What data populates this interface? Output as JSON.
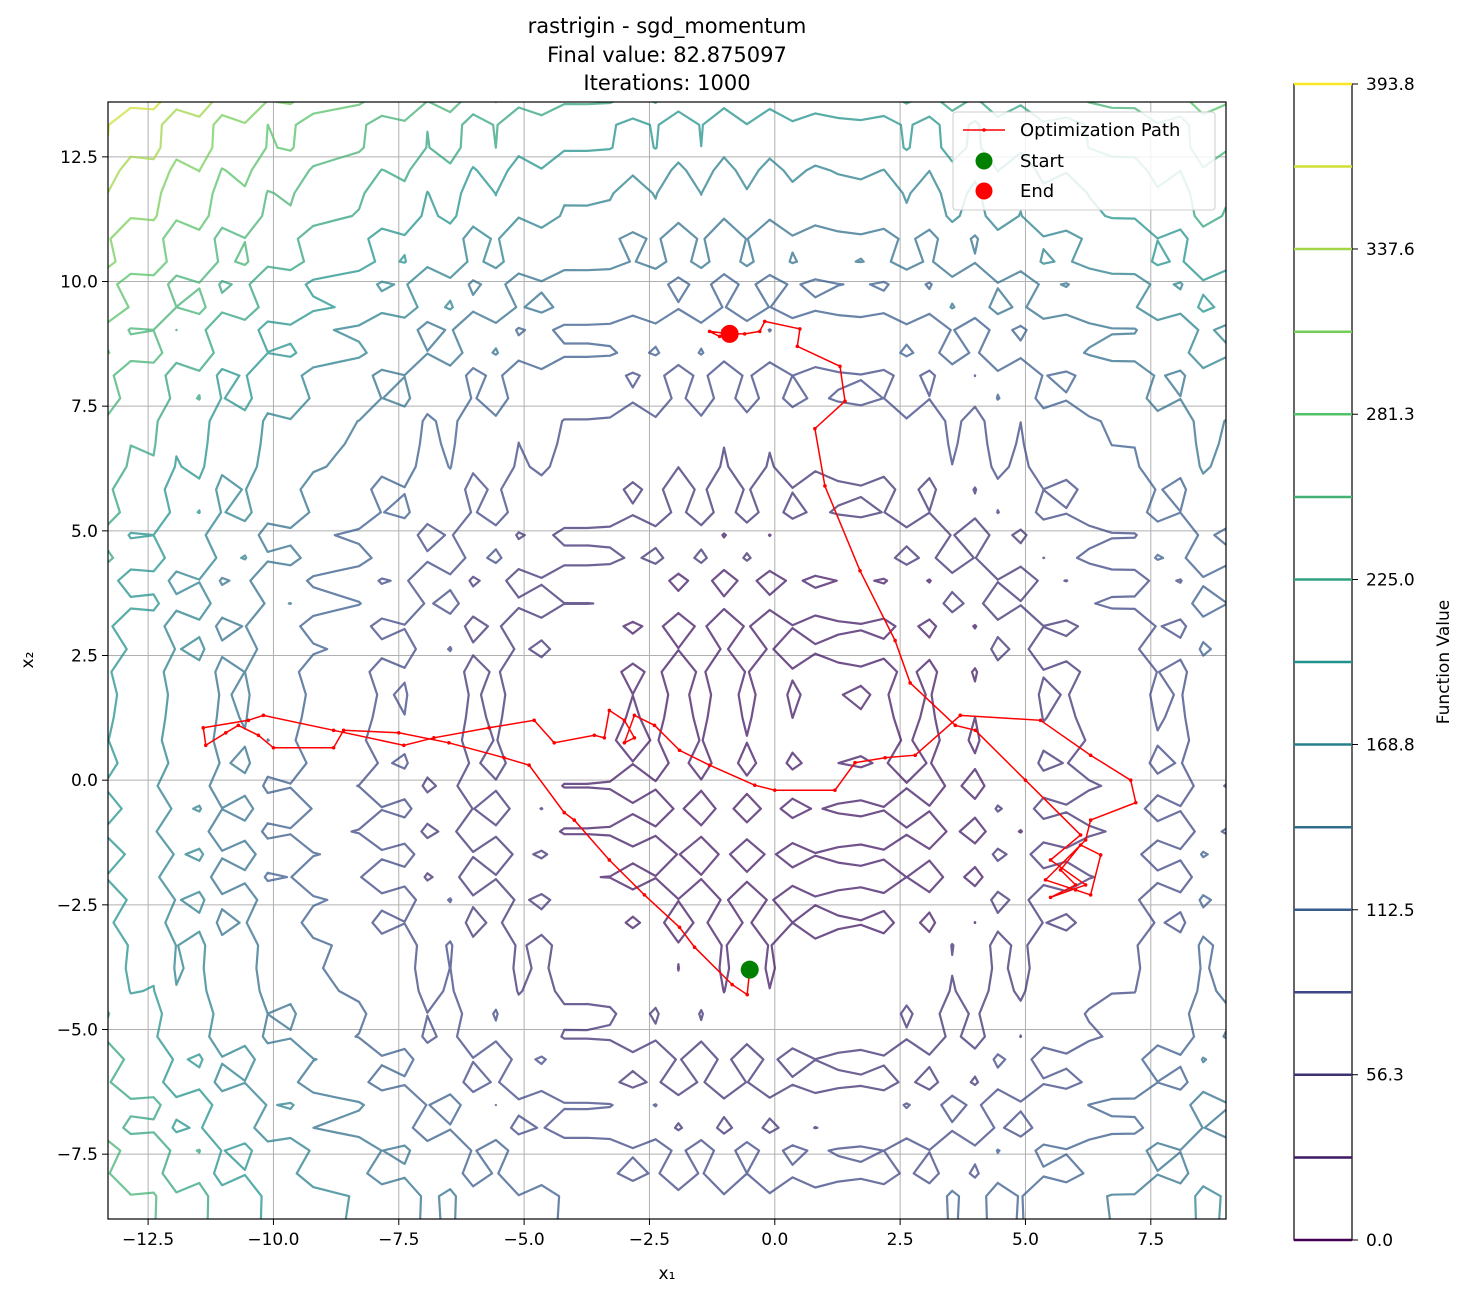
{
  "chart_data": {
    "type": "contour",
    "title": "rastrigin - sgd_momentum",
    "subtitle_lines": [
      "Final value: 82.875097",
      "Iterations: 1000"
    ],
    "xlabel": "x₁",
    "ylabel": "x₂",
    "xlim": [
      -13.3,
      9.0
    ],
    "ylim": [
      -8.8,
      13.6
    ],
    "x_ticks": [
      -12.5,
      -10.0,
      -7.5,
      -5.0,
      -2.5,
      0.0,
      2.5,
      5.0,
      7.5
    ],
    "x_tick_labels": [
      "−12.5",
      "−10.0",
      "−7.5",
      "−5.0",
      "−2.5",
      "0.0",
      "2.5",
      "5.0",
      "7.5"
    ],
    "y_ticks": [
      -7.5,
      -5.0,
      -2.5,
      0.0,
      2.5,
      5.0,
      7.5,
      10.0,
      12.5
    ],
    "y_tick_labels": [
      "−7.5",
      "−5.0",
      "−2.5",
      "0.0",
      "2.5",
      "5.0",
      "7.5",
      "10.0",
      "12.5"
    ],
    "grid": true,
    "legend_position": "top-right",
    "legend": [
      "Optimization Path",
      "Start",
      "End"
    ],
    "colorbar": {
      "label": "Function Value",
      "range": [
        0.0,
        393.8
      ],
      "levels": [
        0.0,
        28.1,
        56.3,
        84.4,
        112.5,
        140.6,
        168.8,
        196.9,
        225.0,
        253.1,
        281.3,
        309.4,
        337.6,
        365.7,
        393.8
      ],
      "tick_values": [
        0.0,
        56.3,
        112.5,
        168.8,
        225.0,
        281.3,
        337.6,
        393.8
      ],
      "tick_labels": [
        "0.0",
        "56.3",
        "112.5",
        "168.8",
        "225.0",
        "281.3",
        "337.6",
        "393.8"
      ]
    },
    "path_color": "#ff0000",
    "start_color": "#008000",
    "end_color": "#ff0000",
    "start": [
      -0.5,
      -3.8
    ],
    "end": [
      -0.9,
      8.95
    ],
    "path": [
      [
        -0.5,
        -3.8
      ],
      [
        -0.55,
        -4.3
      ],
      [
        -0.85,
        -4.1
      ],
      [
        -1.6,
        -3.35
      ],
      [
        -1.9,
        -2.95
      ],
      [
        -2.6,
        -2.3
      ],
      [
        -3.3,
        -1.6
      ],
      [
        -4.0,
        -0.8
      ],
      [
        -4.2,
        -0.65
      ],
      [
        -4.9,
        0.3
      ],
      [
        -5.4,
        0.45
      ],
      [
        -6.5,
        0.75
      ],
      [
        -7.5,
        0.95
      ],
      [
        -8.6,
        1.0
      ],
      [
        -8.8,
        0.65
      ],
      [
        -10.0,
        0.65
      ],
      [
        -10.3,
        0.9
      ],
      [
        -10.7,
        1.1
      ],
      [
        -10.95,
        0.95
      ],
      [
        -11.35,
        0.7
      ],
      [
        -11.4,
        1.05
      ],
      [
        -10.5,
        1.2
      ],
      [
        -10.2,
        1.3
      ],
      [
        -8.8,
        1.0
      ],
      [
        -7.4,
        0.7
      ],
      [
        -6.8,
        0.85
      ],
      [
        -5.7,
        1.05
      ],
      [
        -4.8,
        1.2
      ],
      [
        -4.4,
        0.75
      ],
      [
        -3.6,
        0.9
      ],
      [
        -3.4,
        0.85
      ],
      [
        -3.3,
        1.4
      ],
      [
        -3.0,
        1.2
      ],
      [
        -2.8,
        0.85
      ],
      [
        -3.0,
        0.75
      ],
      [
        -2.8,
        1.3
      ],
      [
        -2.4,
        1.1
      ],
      [
        -1.9,
        0.6
      ],
      [
        -1.3,
        0.3
      ],
      [
        -0.4,
        -0.1
      ],
      [
        0.0,
        -0.2
      ],
      [
        1.2,
        -0.2
      ],
      [
        1.6,
        0.35
      ],
      [
        2.2,
        0.45
      ],
      [
        2.8,
        0.5
      ],
      [
        3.7,
        1.3
      ],
      [
        5.3,
        1.2
      ],
      [
        6.3,
        0.5
      ],
      [
        7.1,
        0.0
      ],
      [
        7.2,
        -0.45
      ],
      [
        6.3,
        -0.8
      ],
      [
        6.2,
        -1.2
      ],
      [
        5.4,
        -2.0
      ],
      [
        6.0,
        -2.2
      ],
      [
        6.3,
        -2.3
      ],
      [
        6.5,
        -1.5
      ],
      [
        6.1,
        -1.3
      ],
      [
        5.7,
        -1.8
      ],
      [
        6.0,
        -2.1
      ],
      [
        5.5,
        -2.35
      ],
      [
        6.2,
        -2.1
      ],
      [
        5.5,
        -1.6
      ],
      [
        6.1,
        -1.1
      ],
      [
        5.0,
        0.0
      ],
      [
        4.0,
        1.0
      ],
      [
        3.6,
        1.1
      ],
      [
        2.7,
        1.95
      ],
      [
        2.4,
        2.8
      ],
      [
        1.7,
        4.2
      ],
      [
        1.0,
        5.9
      ],
      [
        0.8,
        7.05
      ],
      [
        1.4,
        7.6
      ],
      [
        1.3,
        8.3
      ],
      [
        0.45,
        8.7
      ],
      [
        0.5,
        9.05
      ],
      [
        -0.2,
        9.2
      ],
      [
        -0.3,
        9.0
      ],
      [
        -0.6,
        8.95
      ],
      [
        -0.9,
        8.95
      ],
      [
        -1.1,
        8.9
      ],
      [
        -1.3,
        9.0
      ],
      [
        -0.9,
        8.95
      ]
    ]
  }
}
